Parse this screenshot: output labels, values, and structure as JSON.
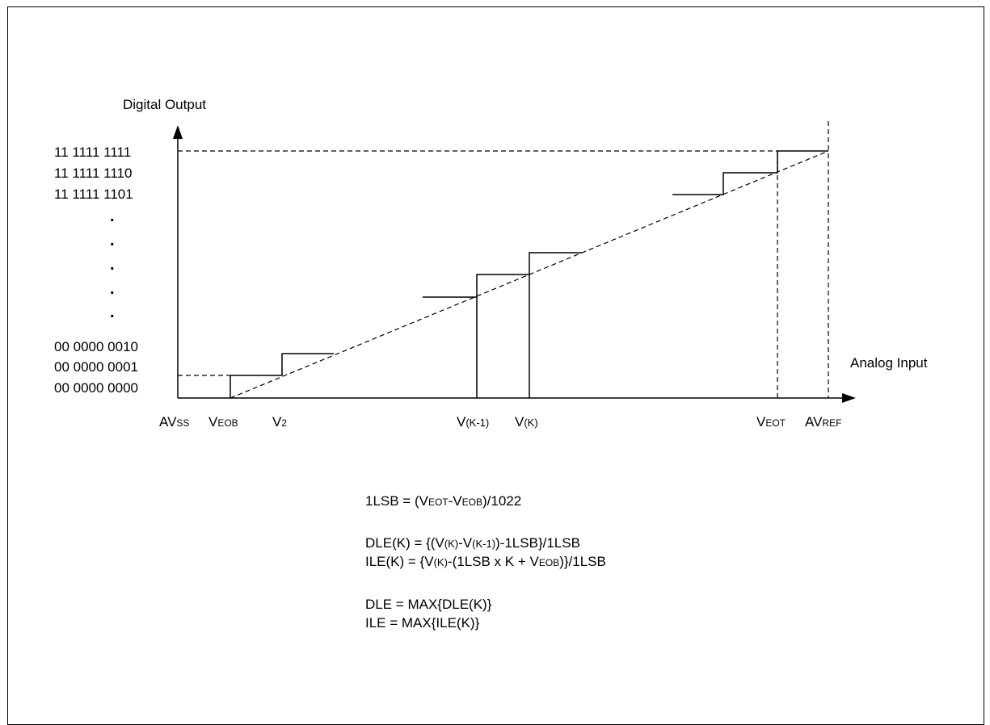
{
  "axes": {
    "y_title": "Digital Output",
    "x_title": "Analog Input"
  },
  "y_codes": {
    "top": [
      "11 1111 1111",
      "11 1111 1110",
      "11 1111 1101"
    ],
    "bottom": [
      "00 0000 0010",
      "00 0000 0001",
      "00 0000 0000"
    ],
    "ellipsis": [
      ".",
      ".",
      ".",
      ".",
      "."
    ]
  },
  "x_ticks": [
    {
      "main": "AV",
      "sub": "SS"
    },
    {
      "main": "V",
      "sub": "EOB"
    },
    {
      "main": "V",
      "sub": "2"
    },
    {
      "main": "V",
      "sub": "(K-1)"
    },
    {
      "main": "V",
      "sub": "(K)"
    },
    {
      "main": "V",
      "sub": "EOT"
    },
    {
      "main": "AV",
      "sub": "REF"
    }
  ],
  "formulas": {
    "lsb": {
      "p1": "1LSB = (V",
      "s1": "EOT",
      "p2": "-V",
      "s2": "EOB",
      "p3": ")/1022"
    },
    "dle_k": {
      "p1": "DLE(K) = {(V",
      "s1": "(K)",
      "p2": "-V",
      "s2": "(K-1)",
      "p3": ")-1LSB}/1LSB"
    },
    "ile_k": {
      "p1": "ILE(K) = {V",
      "s1": "(K)",
      "p2": "-(1LSB x K + V",
      "s2": "EOB",
      "p3": ")}/1LSB"
    },
    "dle": "DLE = MAX{DLE(K)}",
    "ile": "ILE = MAX{ILE(K)}"
  }
}
